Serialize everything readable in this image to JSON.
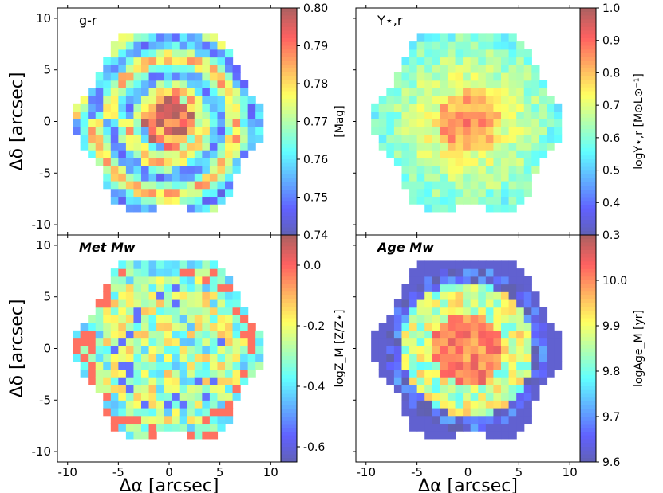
{
  "chart_data": [
    {
      "type": "heatmap",
      "panel": "top-left",
      "label": "g-r",
      "label_style": "normal",
      "x_ticks": [
        -10,
        -5,
        0,
        5,
        10
      ],
      "y_ticks": [
        -10,
        -5,
        0,
        5,
        10
      ],
      "xlim": [
        -11,
        11
      ],
      "ylim": [
        -11,
        11
      ],
      "ylabel": "Δδ [arcsec]",
      "xlabel": "",
      "extent_radius": 9.5,
      "pattern": "rings",
      "colorbar": {
        "min": 0.74,
        "max": 0.8,
        "ticks": [
          "0.80",
          "0.79",
          "0.78",
          "0.77",
          "0.76",
          "0.75",
          "0.74"
        ],
        "label": "[Mag]"
      }
    },
    {
      "type": "heatmap",
      "panel": "top-right",
      "label": "Υ⋆,r",
      "label_style": "normal",
      "x_ticks": [
        -10,
        -5,
        0,
        5,
        10
      ],
      "y_ticks": [
        -10,
        -5,
        0,
        5,
        10
      ],
      "xlim": [
        -11,
        11
      ],
      "ylim": [
        -11,
        11
      ],
      "ylabel": "",
      "xlabel": "",
      "extent_radius": 9.5,
      "pattern": "central-peak",
      "colorbar": {
        "min": 0.3,
        "max": 1.0,
        "ticks": [
          "1.0",
          "0.9",
          "0.8",
          "0.7",
          "0.6",
          "0.5",
          "0.4",
          "0.3"
        ],
        "label": "logΥ⋆,r [M⊙L⊙⁻¹]"
      }
    },
    {
      "type": "heatmap",
      "panel": "bottom-left",
      "label": "Met Mw",
      "label_style": "italic",
      "x_ticks": [
        -10,
        -5,
        0,
        5,
        10
      ],
      "y_ticks": [
        -10,
        -5,
        0,
        5,
        10
      ],
      "xlim": [
        -11,
        11
      ],
      "ylim": [
        -11,
        11
      ],
      "ylabel": "Δδ [arcsec]",
      "xlabel": "Δα [arcsec]",
      "extent_radius": 9.5,
      "pattern": "noisy-edges-high",
      "colorbar": {
        "min": -0.65,
        "max": 0.1,
        "ticks": [
          "0.0",
          "-0.2",
          "-0.4",
          "-0.6"
        ],
        "tick_values": [
          0.0,
          -0.2,
          -0.4,
          -0.6
        ],
        "label": "logZ_M [Z/Z⋆]"
      }
    },
    {
      "type": "heatmap",
      "panel": "bottom-right",
      "label": "Age Mw",
      "label_style": "italic",
      "x_ticks": [
        -10,
        -5,
        0,
        5,
        10
      ],
      "y_ticks": [
        -10,
        -5,
        0,
        5,
        10
      ],
      "xlim": [
        -11,
        11
      ],
      "ylim": [
        -11,
        11
      ],
      "ylabel": "",
      "xlabel": "Δα [arcsec]",
      "extent_radius": 9.5,
      "pattern": "old-center-young-ring",
      "colorbar": {
        "min": 9.6,
        "max": 10.1,
        "ticks": [
          "10.0",
          "9.9",
          "9.8",
          "9.7",
          "9.6"
        ],
        "tick_values": [
          10.0,
          9.9,
          9.8,
          9.7,
          9.6
        ],
        "label": "logAge_M [yr]"
      }
    }
  ]
}
